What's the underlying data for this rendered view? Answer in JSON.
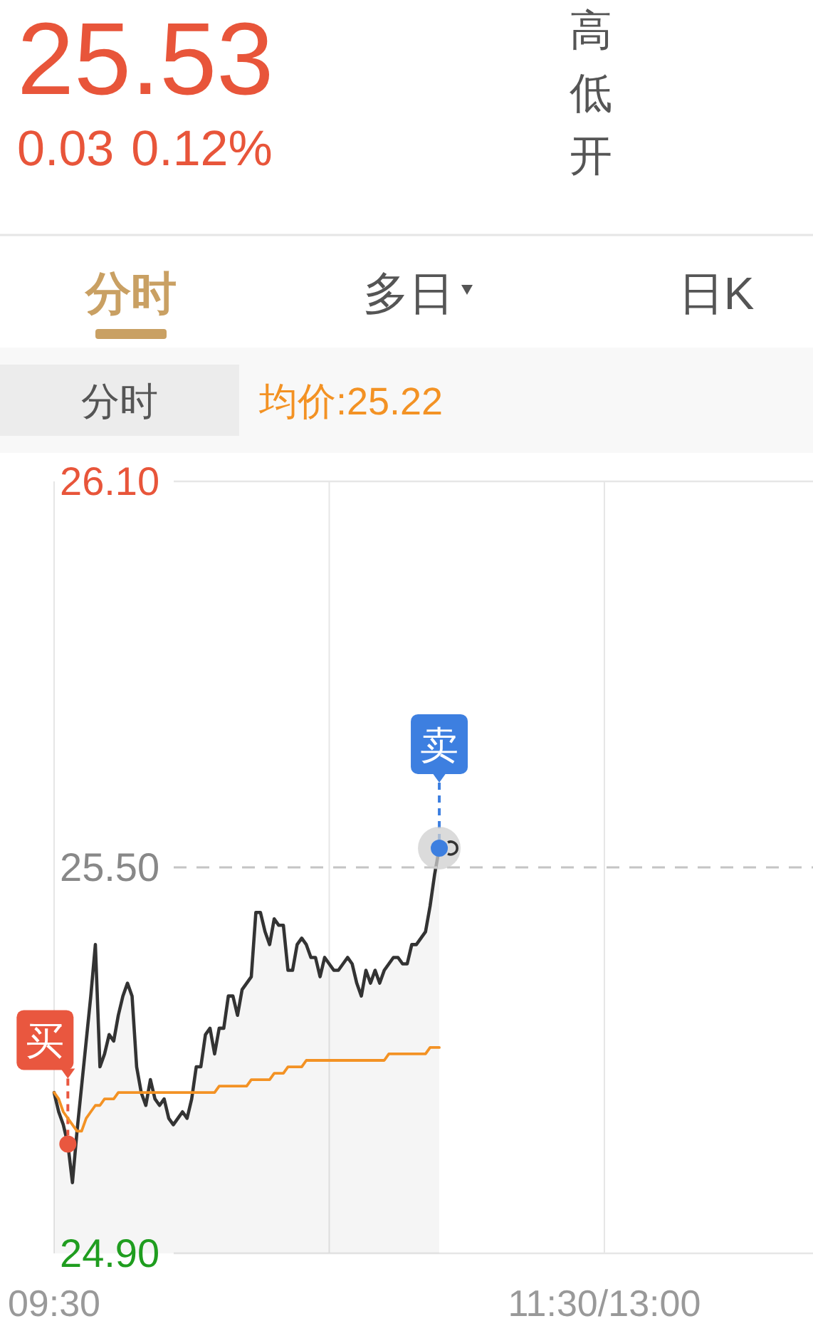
{
  "chart_data": {
    "type": "line",
    "annotations": [
      "25.53",
      "0.03",
      "0.12%",
      "高",
      "低",
      "开",
      "分时",
      "多日",
      "日K",
      "分时"
    ],
    "categories": [
      "09:30",
      null,
      null,
      null,
      null,
      null,
      null,
      null,
      null,
      null,
      null,
      null,
      null,
      null,
      null,
      null,
      null,
      null,
      null,
      null,
      null,
      null,
      null,
      null,
      null,
      null,
      null,
      null,
      null,
      null,
      null,
      null,
      null,
      null,
      null,
      null,
      null,
      null,
      null,
      null,
      null,
      null,
      null,
      null,
      null,
      null,
      null,
      null,
      null,
      null,
      null,
      null,
      null,
      null,
      null,
      null,
      null,
      null,
      null,
      null,
      null,
      null,
      null,
      null,
      null,
      null,
      null,
      null,
      null,
      null,
      null,
      null,
      null,
      null,
      null,
      null,
      null,
      null,
      null,
      null,
      null,
      null,
      null,
      null,
      null,
      null,
      null,
      null,
      null,
      null,
      null,
      null,
      null,
      null,
      null,
      null,
      null,
      null,
      null,
      null,
      null,
      null,
      null,
      null,
      null,
      null,
      null,
      null,
      null,
      null,
      null,
      null,
      null,
      null,
      null,
      null,
      null,
      null,
      null,
      null,
      "11:30/13:00",
      null,
      null,
      null,
      null,
      null,
      null,
      null,
      null,
      null,
      null,
      null,
      null,
      null,
      null,
      null,
      null,
      null,
      null,
      null,
      null,
      null,
      null,
      null,
      null,
      null,
      null,
      null,
      null,
      null,
      null,
      null,
      null,
      null,
      null,
      null,
      null,
      null,
      null,
      null,
      null,
      null,
      null,
      null,
      null,
      null
    ],
    "series": [
      {
        "type": "area",
        "color": "#333333",
        "values": [
          25.15,
          25.12,
          25.1,
          25.07,
          25.01,
          25.09,
          25.16,
          25.23,
          25.3,
          25.38,
          25.19,
          25.21,
          25.24,
          25.23,
          25.27,
          25.3,
          25.32,
          25.3,
          25.19,
          25.15,
          25.13,
          25.17,
          25.14,
          25.13,
          25.14,
          25.11,
          25.1,
          25.11,
          25.12,
          25.11,
          25.14,
          25.19,
          25.19,
          25.24,
          25.25,
          25.21,
          25.25,
          25.25,
          25.3,
          25.3,
          25.27,
          25.31,
          25.32,
          25.33,
          25.43,
          25.43,
          25.4,
          25.38,
          25.42,
          25.41,
          25.41,
          25.34,
          25.34,
          25.38,
          25.39,
          25.38,
          25.36,
          25.36,
          25.33,
          25.36,
          25.35,
          25.34,
          25.34,
          25.35,
          25.36,
          25.35,
          25.32,
          25.3,
          25.34,
          25.32,
          25.34,
          25.32,
          25.34,
          25.35,
          25.36,
          25.36,
          25.35,
          25.35,
          25.38,
          25.38,
          25.39,
          25.4,
          25.44,
          25.49,
          25.53,
          null,
          null,
          null,
          null,
          null,
          null,
          null,
          null,
          null,
          null,
          null,
          null,
          null,
          null,
          null,
          null,
          null,
          null,
          null,
          null,
          null,
          null,
          null,
          null,
          null,
          null,
          null,
          null,
          null,
          null,
          null,
          null,
          null,
          null,
          null,
          null,
          null,
          null,
          null,
          null,
          null,
          null,
          null,
          null,
          null,
          null,
          null,
          null,
          null,
          null,
          null,
          null,
          null,
          null,
          null,
          null,
          null,
          null,
          null,
          null,
          null,
          null,
          null,
          null,
          null,
          null,
          null,
          null,
          null,
          null,
          null,
          null,
          null,
          null,
          null,
          null,
          null,
          null,
          null,
          null,
          null
        ]
      },
      {
        "name": "均价:25.22",
        "color": "#f39224",
        "values": [
          25.15,
          25.14,
          25.12,
          25.11,
          25.1,
          25.09,
          25.09,
          25.11,
          25.12,
          25.13,
          25.13,
          25.14,
          25.14,
          25.14,
          25.15,
          25.15,
          25.15,
          25.15,
          25.15,
          25.15,
          25.15,
          25.15,
          25.15,
          25.15,
          25.15,
          25.15,
          25.15,
          25.15,
          25.15,
          25.15,
          25.15,
          25.15,
          25.15,
          25.15,
          25.15,
          25.15,
          25.16,
          25.16,
          25.16,
          25.16,
          25.16,
          25.16,
          25.16,
          25.17,
          25.17,
          25.17,
          25.17,
          25.17,
          25.18,
          25.18,
          25.18,
          25.19,
          25.19,
          25.19,
          25.19,
          25.2,
          25.2,
          25.2,
          25.2,
          25.2,
          25.2,
          25.2,
          25.2,
          25.2,
          25.2,
          25.2,
          25.2,
          25.2,
          25.2,
          25.2,
          25.2,
          25.2,
          25.2,
          25.21,
          25.21,
          25.21,
          25.21,
          25.21,
          25.21,
          25.21,
          25.21,
          25.21,
          25.22,
          25.22,
          25.22,
          null,
          null,
          null,
          null,
          null,
          null,
          null,
          null,
          null,
          null,
          null,
          null,
          null,
          null,
          null,
          null,
          null,
          null,
          null,
          null,
          null,
          null,
          null,
          null,
          null,
          null,
          null,
          null,
          null,
          null,
          null,
          null,
          null,
          null,
          null,
          null,
          null,
          null,
          null,
          null,
          null,
          null,
          null,
          null,
          null,
          null,
          null,
          null,
          null,
          null,
          null,
          null,
          null,
          null,
          null,
          null,
          null,
          null,
          null,
          null,
          null,
          null,
          null,
          null,
          null,
          null,
          null,
          null,
          null,
          null,
          null,
          null,
          null,
          null,
          null,
          null,
          null,
          null,
          null,
          null,
          null
        ]
      },
      {
        "type": "scatter",
        "values": [
          null,
          null,
          null,
          25.07,
          null,
          null,
          null,
          null,
          null,
          null,
          null,
          null,
          null,
          null,
          null,
          null,
          null,
          null,
          null,
          null,
          null,
          null,
          null,
          null,
          null,
          null,
          null,
          null,
          null,
          null,
          null,
          null,
          null,
          null,
          null,
          null,
          null,
          null,
          null,
          null,
          null,
          null,
          null,
          null,
          null,
          null,
          null,
          null,
          null,
          null,
          null,
          null,
          null,
          null,
          null,
          null,
          null,
          null,
          null,
          null,
          null,
          null,
          null,
          null,
          null,
          null,
          null,
          null,
          null,
          null,
          null,
          null,
          null,
          null,
          null,
          null,
          null,
          null,
          null,
          null,
          null,
          null,
          null,
          null,
          25.53,
          null,
          null,
          null,
          null,
          null,
          null,
          null,
          null,
          null,
          null,
          null,
          null,
          null,
          null,
          null,
          null,
          null,
          null,
          null,
          null,
          null,
          null,
          null,
          null,
          null,
          null,
          null,
          null,
          null,
          null,
          null,
          null,
          null,
          null,
          null,
          null,
          null,
          null,
          null,
          null,
          null,
          null,
          null,
          null,
          null,
          null,
          null,
          null,
          null,
          null,
          null,
          null,
          null,
          null,
          null,
          null,
          null,
          null,
          null,
          null,
          null,
          null,
          null,
          null,
          null,
          null,
          null,
          null,
          null,
          null,
          null,
          null,
          null,
          null,
          null,
          null,
          null,
          null,
          null,
          null,
          null
        ],
        "colors": [
          null,
          null,
          null,
          "#e9573f",
          null,
          null,
          null,
          null,
          null,
          null,
          null,
          null,
          null,
          null,
          null,
          null,
          null,
          null,
          null,
          null,
          null,
          null,
          null,
          null,
          null,
          null,
          null,
          null,
          null,
          null,
          null,
          null,
          null,
          null,
          null,
          null,
          null,
          null,
          null,
          null,
          null,
          null,
          null,
          null,
          null,
          null,
          null,
          null,
          null,
          null,
          null,
          null,
          null,
          null,
          null,
          null,
          null,
          null,
          null,
          null,
          null,
          null,
          null,
          null,
          null,
          null,
          null,
          null,
          null,
          null,
          null,
          null,
          null,
          null,
          null,
          null,
          null,
          null,
          null,
          null,
          null,
          null,
          null,
          null,
          "#3d7fe0",
          null,
          null,
          null,
          null,
          null,
          null,
          null,
          null,
          null,
          null,
          null,
          null,
          null,
          null,
          null,
          null,
          null,
          null,
          null,
          null,
          null,
          null,
          null,
          null,
          null,
          null,
          null,
          null,
          null,
          null,
          null,
          null,
          null,
          null,
          null,
          null,
          null,
          null,
          null,
          null,
          null,
          null,
          null,
          null,
          null,
          null,
          null,
          null,
          null,
          null,
          null,
          null,
          null,
          null,
          null,
          null,
          null,
          null,
          null,
          null,
          null,
          null,
          null,
          null,
          null,
          null,
          null,
          null,
          null,
          null,
          null,
          null,
          null,
          null,
          null,
          null,
          null,
          null,
          null,
          null,
          null
        ],
        "value_labels": [
          null,
          null,
          null,
          "买",
          null,
          null,
          null,
          null,
          null,
          null,
          null,
          null,
          null,
          null,
          null,
          null,
          null,
          null,
          null,
          null,
          null,
          null,
          null,
          null,
          null,
          null,
          null,
          null,
          null,
          null,
          null,
          null,
          null,
          null,
          null,
          null,
          null,
          null,
          null,
          null,
          null,
          null,
          null,
          null,
          null,
          null,
          null,
          null,
          null,
          null,
          null,
          null,
          null,
          null,
          null,
          null,
          null,
          null,
          null,
          null,
          null,
          null,
          null,
          null,
          null,
          null,
          null,
          null,
          null,
          null,
          null,
          null,
          null,
          null,
          null,
          null,
          null,
          null,
          null,
          null,
          null,
          null,
          null,
          null,
          "卖",
          null,
          null,
          null,
          null,
          null,
          null,
          null,
          null,
          null,
          null,
          null,
          null,
          null,
          null,
          null,
          null,
          null,
          null,
          null,
          null,
          null,
          null,
          null,
          null,
          null,
          null,
          null,
          null,
          null,
          null,
          null,
          null,
          null,
          null,
          null,
          null,
          null,
          null,
          null,
          null,
          null,
          null,
          null,
          null,
          null,
          null,
          null,
          null,
          null,
          null,
          null,
          null,
          null,
          null,
          null,
          null,
          null,
          null,
          null,
          null,
          null,
          null,
          null,
          null,
          null,
          null,
          null,
          null,
          null,
          null,
          null,
          null,
          null,
          null,
          null,
          null,
          null,
          null,
          null,
          null,
          null
        ]
      }
    ],
    "ylim": [
      24.9,
      26.1
    ],
    "yticks": [
      {
        "value": 24.9,
        "label": "24.90"
      },
      {
        "value": 25.5,
        "label": "25.50"
      },
      {
        "value": 26.1,
        "label": "26.10"
      }
    ],
    "grid": "x",
    "ref_lines": [
      {
        "axis": "y",
        "value": 25.5,
        "line_style": "dashed",
        "color": "#c4c4c4"
      }
    ],
    "legend": "top left"
  }
}
